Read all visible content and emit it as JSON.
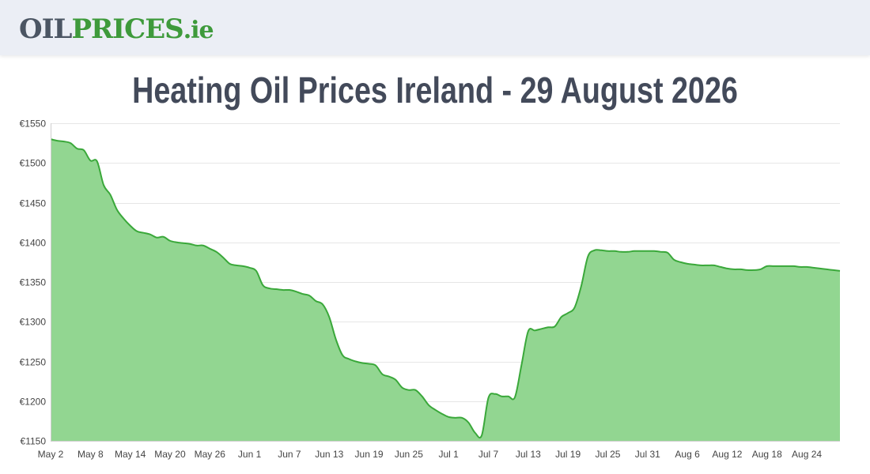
{
  "header": {
    "logo_part1": "OIL",
    "logo_part2": "PRICES",
    "logo_part3": ".ie",
    "logo_color_dark": "#4b5563",
    "logo_color_green": "#3e9a3b"
  },
  "page": {
    "title": "Heating Oil Prices Ireland - 29 August 2026"
  },
  "chart_data": {
    "type": "area",
    "title": "Heating Oil Prices Ireland - 29 August 2026",
    "xlabel": "",
    "ylabel": "",
    "ylim": [
      1150,
      1550
    ],
    "yticks": [
      1150,
      1200,
      1250,
      1300,
      1350,
      1400,
      1450,
      1500,
      1550
    ],
    "ytick_prefix": "€",
    "xticks": [
      "May 2",
      "May 8",
      "May 14",
      "May 20",
      "May 26",
      "Jun 1",
      "Jun 7",
      "Jun 13",
      "Jun 19",
      "Jun 25",
      "Jul 1",
      "Jul 7",
      "Jul 13",
      "Jul 19",
      "Jul 25",
      "Jul 31",
      "Aug 6",
      "Aug 12",
      "Aug 18",
      "Aug 24"
    ],
    "xlim": [
      "2026-05-02",
      "2026-08-29"
    ],
    "grid": true,
    "legend": "none",
    "line_color": "#3aa83a",
    "fill_color": "#92d691",
    "series": [
      {
        "x": [
          "2026-05-02",
          "2026-05-03",
          "2026-05-04",
          "2026-05-05",
          "2026-05-06",
          "2026-05-07",
          "2026-05-08",
          "2026-05-09",
          "2026-05-10",
          "2026-05-11",
          "2026-05-12",
          "2026-05-13",
          "2026-05-14",
          "2026-05-15",
          "2026-05-16",
          "2026-05-17",
          "2026-05-18",
          "2026-05-19",
          "2026-05-20",
          "2026-05-21",
          "2026-05-22",
          "2026-05-23",
          "2026-05-24",
          "2026-05-25",
          "2026-05-26",
          "2026-05-27",
          "2026-05-28",
          "2026-05-29",
          "2026-05-30",
          "2026-05-31",
          "2026-06-01",
          "2026-06-02",
          "2026-06-03",
          "2026-06-04",
          "2026-06-05",
          "2026-06-06",
          "2026-06-07",
          "2026-06-08",
          "2026-06-09",
          "2026-06-10",
          "2026-06-11",
          "2026-06-12",
          "2026-06-13",
          "2026-06-14",
          "2026-06-15",
          "2026-06-16",
          "2026-06-17",
          "2026-06-18",
          "2026-06-19",
          "2026-06-20",
          "2026-06-21",
          "2026-06-22",
          "2026-06-23",
          "2026-06-24",
          "2026-06-25",
          "2026-06-26",
          "2026-06-27",
          "2026-06-28",
          "2026-06-29",
          "2026-06-30",
          "2026-07-01",
          "2026-07-02",
          "2026-07-03",
          "2026-07-04",
          "2026-07-05",
          "2026-07-06",
          "2026-07-07",
          "2026-07-08",
          "2026-07-09",
          "2026-07-10",
          "2026-07-11",
          "2026-07-12",
          "2026-07-13",
          "2026-07-14",
          "2026-07-15",
          "2026-07-16",
          "2026-07-17",
          "2026-07-18",
          "2026-07-19",
          "2026-07-20",
          "2026-07-21",
          "2026-07-22",
          "2026-07-23",
          "2026-07-24",
          "2026-07-25",
          "2026-07-26",
          "2026-07-27",
          "2026-07-28",
          "2026-07-29",
          "2026-07-30",
          "2026-07-31",
          "2026-08-01",
          "2026-08-02",
          "2026-08-03",
          "2026-08-04",
          "2026-08-05",
          "2026-08-06",
          "2026-08-07",
          "2026-08-08",
          "2026-08-09",
          "2026-08-10",
          "2026-08-11",
          "2026-08-12",
          "2026-08-13",
          "2026-08-14",
          "2026-08-15",
          "2026-08-16",
          "2026-08-17",
          "2026-08-18",
          "2026-08-19",
          "2026-08-20",
          "2026-08-21",
          "2026-08-22",
          "2026-08-23",
          "2026-08-24",
          "2026-08-25",
          "2026-08-26",
          "2026-08-27",
          "2026-08-28",
          "2026-08-29"
        ],
        "values": [
          1530,
          1528,
          1527,
          1525,
          1518,
          1516,
          1503,
          1502,
          1472,
          1460,
          1441,
          1430,
          1421,
          1414,
          1412,
          1410,
          1406,
          1407,
          1402,
          1400,
          1399,
          1398,
          1396,
          1396,
          1392,
          1388,
          1381,
          1373,
          1371,
          1370,
          1368,
          1364,
          1346,
          1342,
          1341,
          1340,
          1340,
          1338,
          1335,
          1333,
          1326,
          1322,
          1306,
          1278,
          1258,
          1253,
          1250,
          1248,
          1247,
          1245,
          1234,
          1231,
          1227,
          1217,
          1214,
          1214,
          1206,
          1195,
          1189,
          1184,
          1180,
          1179,
          1179,
          1173,
          1160,
          1157,
          1204,
          1209,
          1206,
          1206,
          1205,
          1246,
          1288,
          1289,
          1291,
          1293,
          1294,
          1306,
          1311,
          1318,
          1345,
          1382,
          1390,
          1390,
          1389,
          1389,
          1388,
          1388,
          1389,
          1389,
          1389,
          1389,
          1388,
          1387,
          1378,
          1375,
          1373,
          1372,
          1371,
          1371,
          1371,
          1369,
          1367,
          1366,
          1366,
          1365,
          1365,
          1366,
          1370,
          1370,
          1370,
          1370,
          1370,
          1369,
          1369,
          1368,
          1367,
          1366,
          1365,
          1364
        ]
      }
    ]
  }
}
